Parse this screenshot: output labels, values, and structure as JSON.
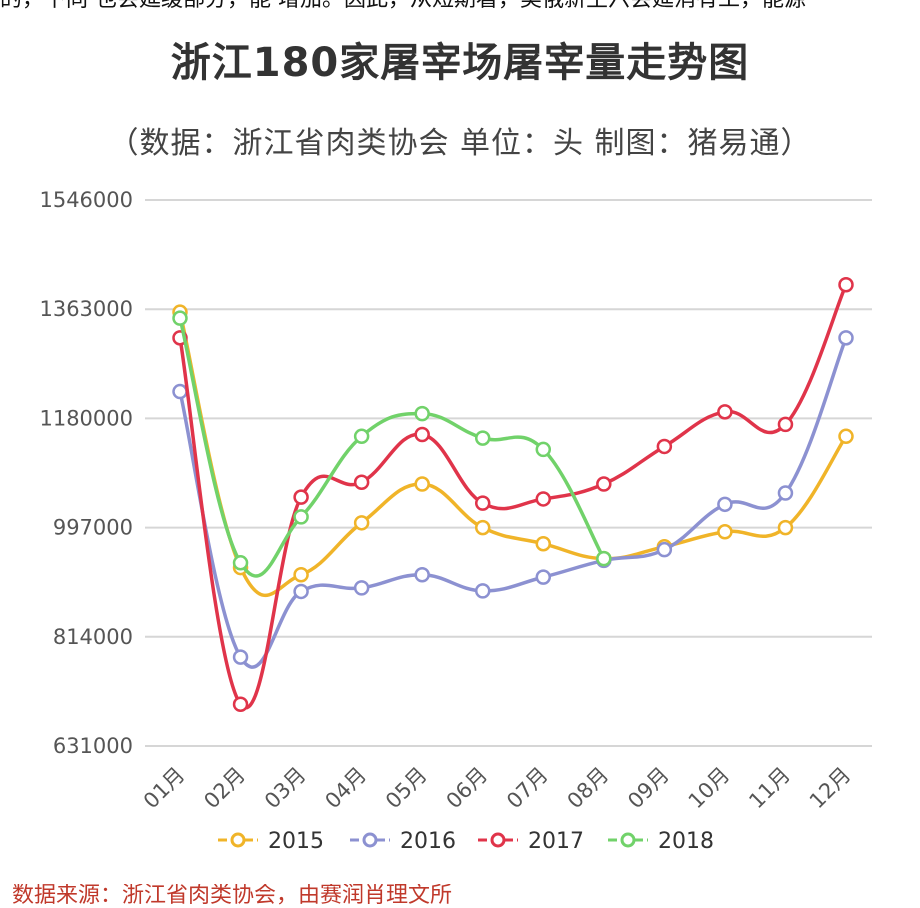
{
  "page": {
    "top_snippet": "的，下同 也会延缓部分，能 增加。因此，从短期看，美俄新主六会延消有工，能源",
    "bottom_caption": "数据来源：浙江省肉类协会，由赛润肖理文所"
  },
  "chart_data": {
    "type": "line",
    "title": "浙江180家屠宰场屠宰量走势图",
    "subtitle": "（数据：浙江省肉类协会 单位：头 制图：猪易通）",
    "xlabel": "",
    "ylabel": "",
    "categories": [
      "01月",
      "02月",
      "03月",
      "04月",
      "05月",
      "06月",
      "07月",
      "08月",
      "09月",
      "10月",
      "11月",
      "12月"
    ],
    "y_ticks": [
      "1546000",
      "1363000",
      "1180000",
      "997000",
      "814000",
      "631000"
    ],
    "ylim": [
      631000,
      1546000
    ],
    "grid": true,
    "legend_position": "bottom",
    "series": [
      {
        "name": "2015",
        "color": "#f0b429",
        "values": [
          1358000,
          930000,
          918000,
          1005000,
          1070000,
          997000,
          970000,
          945000,
          965000,
          990000,
          997000,
          1150000
        ]
      },
      {
        "name": "2016",
        "color": "#8c91d1",
        "values": [
          1225000,
          780000,
          890000,
          896000,
          918000,
          891000,
          914000,
          942000,
          960000,
          1036000,
          1055000,
          1315000
        ]
      },
      {
        "name": "2017",
        "color": "#e0344a",
        "values": [
          1315000,
          701000,
          1048000,
          1073000,
          1153000,
          1038000,
          1045000,
          1070000,
          1133000,
          1191000,
          1170000,
          1404000
        ]
      },
      {
        "name": "2018",
        "color": "#71d26a",
        "values": [
          1348000,
          938000,
          1015000,
          1150000,
          1188000,
          1147000,
          1128000,
          945000,
          null,
          null,
          null,
          null
        ]
      }
    ]
  }
}
